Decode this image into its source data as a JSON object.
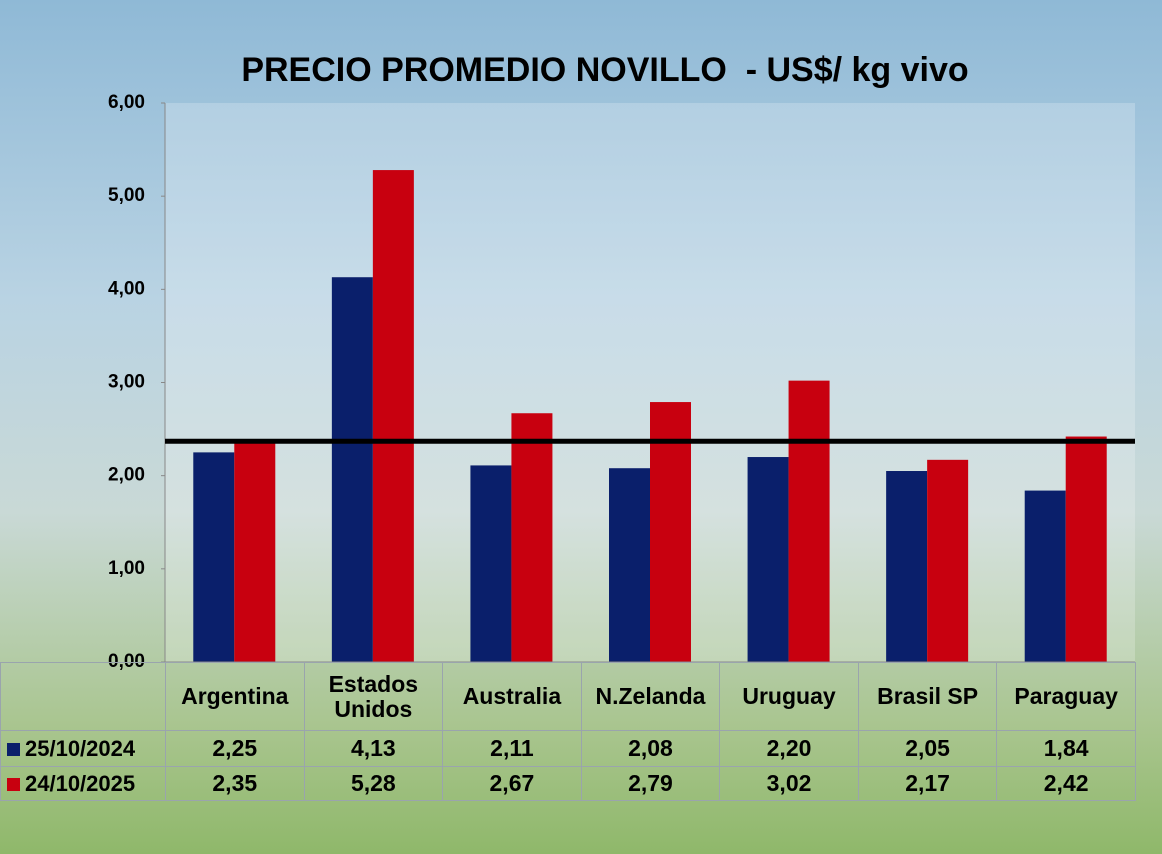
{
  "chart_data": {
    "type": "bar",
    "title": "PRECIO PROMEDIO NOVILLO  - US$/ kg vivo",
    "categories": [
      "Argentina",
      "Estados Unidos",
      "Australia",
      "N.Zelanda",
      "Uruguay",
      "Brasil SP",
      "Paraguay"
    ],
    "series": [
      {
        "name": "25/10/2024",
        "color": "#0a1f6b",
        "values": [
          2.25,
          4.13,
          2.11,
          2.08,
          2.2,
          2.05,
          1.84
        ],
        "value_labels": [
          "2,25",
          "4,13",
          "2,11",
          "2,08",
          "2,20",
          "2,05",
          "1,84"
        ]
      },
      {
        "name": "24/10/2025",
        "color": "#c8000f",
        "values": [
          2.35,
          5.28,
          2.67,
          2.79,
          3.02,
          2.17,
          2.42
        ],
        "value_labels": [
          "2,35",
          "5,28",
          "2,67",
          "2,79",
          "3,02",
          "2,17",
          "2,42"
        ]
      }
    ],
    "ylim": [
      0,
      6
    ],
    "yticks": [
      {
        "value": 0,
        "label": "0,00"
      },
      {
        "value": 1,
        "label": "1,00"
      },
      {
        "value": 2,
        "label": "2,00"
      },
      {
        "value": 3,
        "label": "3,00"
      },
      {
        "value": 4,
        "label": "4,00"
      },
      {
        "value": 5,
        "label": "5,00"
      },
      {
        "value": 6,
        "label": "6,00"
      }
    ],
    "reference_line": 2.37,
    "reference_color": "#000000"
  }
}
